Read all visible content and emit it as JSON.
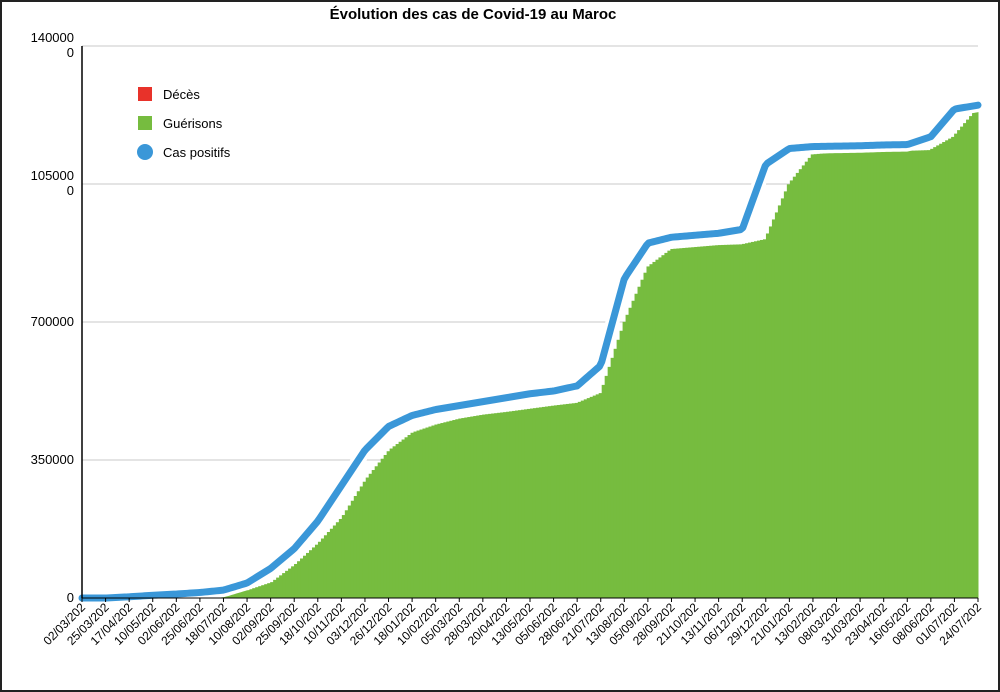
{
  "chart_data": {
    "type": "area",
    "title": "Évolution des cas de Covid-19 au Maroc",
    "xlabel": "",
    "ylabel": "",
    "ylim": [
      0,
      1400000
    ],
    "yticks": [
      {
        "value": 0,
        "lines": [
          "0"
        ]
      },
      {
        "value": 350000,
        "lines": [
          "350000"
        ]
      },
      {
        "value": 700000,
        "lines": [
          "700000"
        ]
      },
      {
        "value": 1050000,
        "lines": [
          "105000",
          "0"
        ]
      },
      {
        "value": 1400000,
        "lines": [
          "140000",
          "0"
        ]
      }
    ],
    "grid": true,
    "legend_position": "top-left",
    "categories": [
      "02/03/202",
      "25/03/202",
      "17/04/202",
      "10/05/202",
      "02/06/202",
      "25/06/202",
      "18/07/202",
      "10/08/202",
      "02/09/202",
      "25/09/202",
      "18/10/202",
      "10/11/202",
      "03/12/202",
      "26/12/202",
      "18/01/202",
      "10/02/202",
      "05/03/202",
      "28/03/202",
      "20/04/202",
      "13/05/202",
      "05/06/202",
      "28/06/202",
      "21/07/202",
      "13/08/202",
      "05/09/202",
      "28/09/202",
      "21/10/202",
      "13/11/202",
      "06/12/202",
      "29/12/202",
      "21/01/202",
      "13/02/202",
      "08/03/202",
      "31/03/202",
      "23/04/202",
      "16/05/202",
      "08/06/202",
      "01/07/202",
      "24/07/202"
    ],
    "series": [
      {
        "name": "Décès",
        "color": "#e8322a",
        "style": "area",
        "values": [
          0,
          0,
          0,
          300,
          600,
          1000,
          1600,
          2500,
          3900,
          5400,
          7000,
          8600,
          10500,
          12300,
          13800,
          14600,
          15200,
          15500,
          15800,
          16000,
          16200,
          16300,
          16800,
          17600,
          18500,
          19200,
          19500,
          19700,
          19900,
          20000,
          20300,
          20800,
          21300,
          21700,
          21800,
          21900,
          22000,
          22200,
          22500
        ]
      },
      {
        "name": "Guérisons",
        "color": "#76bc3f",
        "style": "area",
        "values": [
          0,
          0,
          1000,
          3000,
          5000,
          8000,
          13000,
          20000,
          40000,
          85000,
          140000,
          205000,
          300000,
          375000,
          420000,
          440000,
          455000,
          465000,
          472000,
          480000,
          488000,
          495000,
          520000,
          700000,
          840000,
          885000,
          890000,
          895000,
          897000,
          910000,
          1050000,
          1125000,
          1130000,
          1131000,
          1133000,
          1134000,
          1136000,
          1170000,
          1240000
        ]
      },
      {
        "name": "Cas positifs",
        "color": "#3a97d8",
        "style": "line",
        "values": [
          0,
          0,
          3000,
          7000,
          10000,
          14000,
          20000,
          38000,
          75000,
          125000,
          195000,
          285000,
          375000,
          435000,
          463000,
          478000,
          488000,
          498000,
          508000,
          518000,
          525000,
          538000,
          590000,
          810000,
          900000,
          915000,
          920000,
          925000,
          935000,
          1100000,
          1140000,
          1145000,
          1146000,
          1147000,
          1149000,
          1150000,
          1170000,
          1240000,
          1250000
        ]
      }
    ]
  }
}
